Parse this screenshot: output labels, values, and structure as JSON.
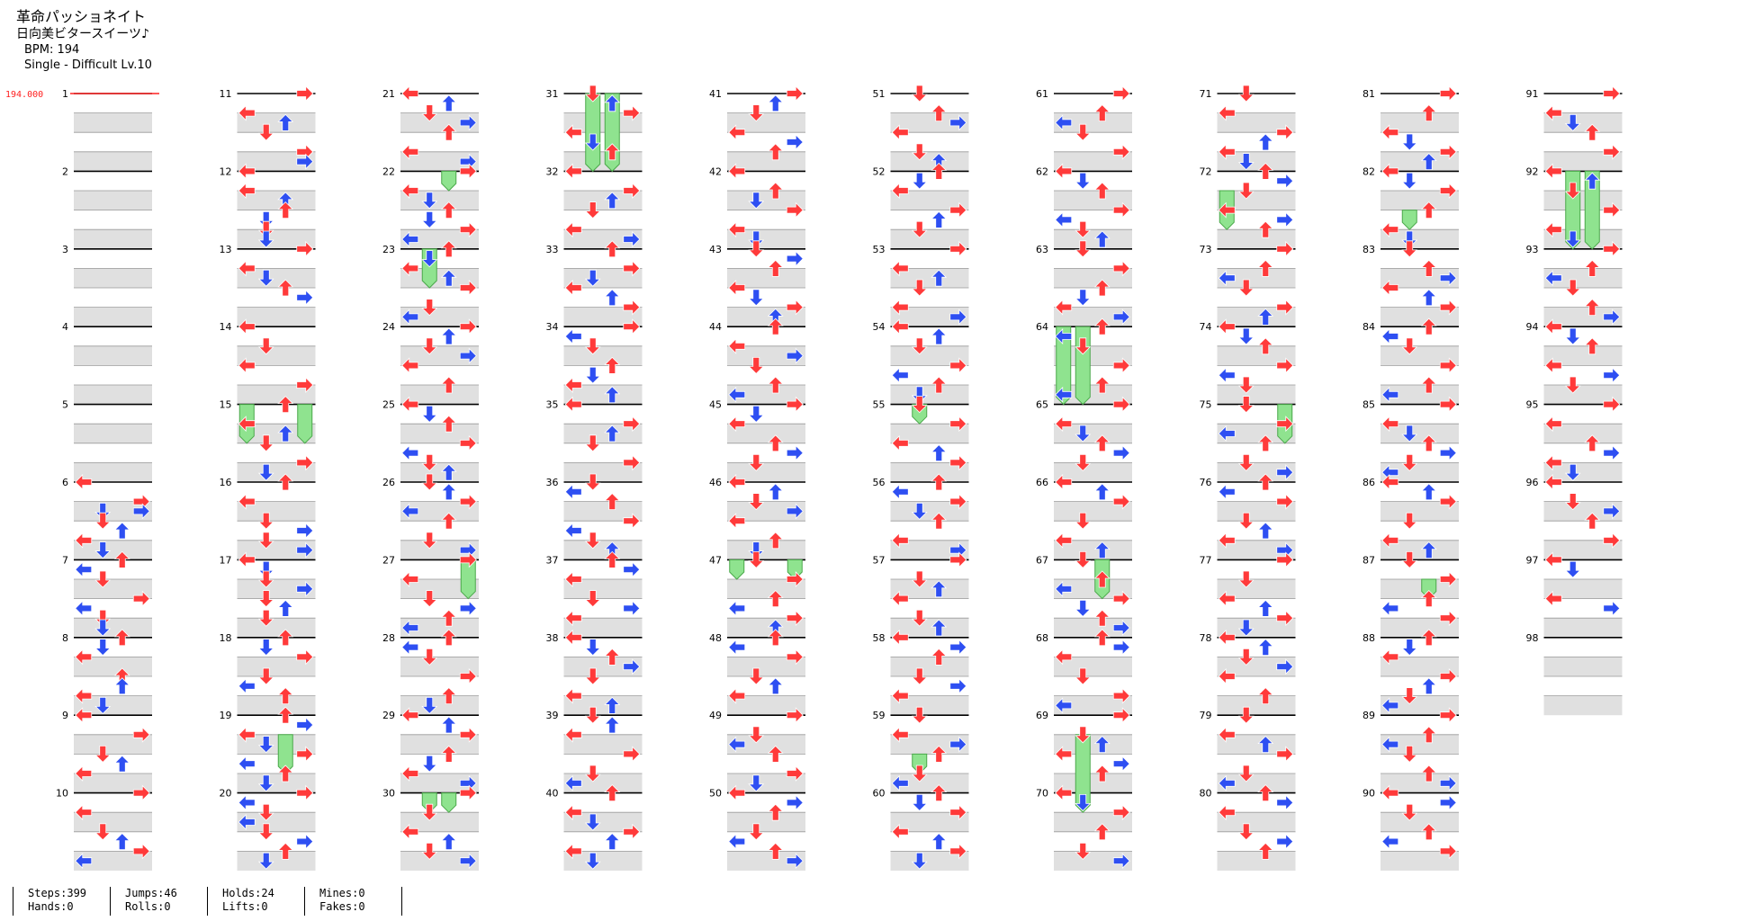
{
  "header": {
    "song_title": "革命パッショネイト",
    "artist": "日向美ビタースイーツ♪",
    "bpm_line": "BPM: 194",
    "difficulty_line": "Single - Difficult Lv.10"
  },
  "bpm_marker": "194.000",
  "stats": {
    "steps": "Steps:399",
    "hands": "Hands:0",
    "jumps": "Jumps:46",
    "rolls": "Rolls:0",
    "holds": "Holds:24",
    "lifts": "Lifts:0",
    "mines": "Mines:0",
    "fakes": "Fakes:0"
  },
  "measures_per_column": 10,
  "total_measures": 98,
  "colors": {
    "quarter_arrow": "#ff3a3a",
    "eighth_arrow": "#2e4ff2",
    "hold_body": "#8fe38f",
    "hold_border": "#4aa84a",
    "beat_band": "#e0e0e0",
    "bpm_marker": "#ff2020"
  },
  "measures": {
    "1": [],
    "2": [],
    "3": [],
    "4": [],
    "5": [],
    "6": [
      "0,L",
      "1,R",
      "1.5,R",
      "1.5,D",
      "2,D",
      "2.5,U",
      "3,L",
      "3.5,D"
    ],
    "7": [
      "0,U",
      "0.5,L",
      "1,D",
      "2,R",
      "2.5,L",
      "3,D",
      "3.5,D"
    ],
    "8": [
      "0,U",
      "0.5,D",
      "1,L",
      "2,U",
      "2.5,U",
      "3,L",
      "3.5,D"
    ],
    "9": [
      "0,L",
      "1,R",
      "2,D",
      "2.5,U",
      "3,L"
    ],
    "10": [
      "0,R",
      "1,L",
      "2,D",
      "2.5,U",
      "3,R",
      "3.5,L"
    ],
    "11": [
      "0,R",
      "1,L",
      "1.5,U",
      "2,D",
      "3,R",
      "3.5,R"
    ],
    "12": [
      "0,L",
      "1,L",
      "1.5,U",
      "2,U",
      "2.5,D",
      "3,D",
      "3.5,D"
    ],
    "13": [
      "0,R",
      "1,L",
      "1.5,D",
      "2,U",
      "2.5,R"
    ],
    "14": [
      "0,L",
      "1,D",
      "2,L",
      "3,R"
    ],
    "15": [
      "0,U",
      "1,L",
      "1.5,U",
      "2,D",
      "3,R",
      "3.5,D"
    ],
    "16": [
      "0,U",
      "1,L",
      "2,D",
      "2.5,R",
      "3,D",
      "3.5,R"
    ],
    "17": [
      "0,L",
      "0.5,D",
      "1,D",
      "1.5,R",
      "2,D",
      "2.5,U",
      "3,D"
    ],
    "18": [
      "0,U",
      "0.5,D",
      "1,R",
      "2,D",
      "2.5,L",
      "3,U"
    ],
    "19": [
      "0,U",
      "0.5,R",
      "1,L",
      "1.5,D",
      "2,R",
      "2.5,L",
      "3,U",
      "3.5,D"
    ],
    "20": [
      "0,R",
      "0.5,L",
      "1,D",
      "1.5,L",
      "2,D",
      "2.5,R",
      "3,U",
      "3.5,D"
    ],
    "21": [
      "0,L",
      "0.5,U",
      "1,D",
      "1.5,R",
      "2,U",
      "3,L",
      "3.5,R"
    ],
    "22": [
      "0,R",
      "1,L",
      "1.5,D",
      "2,U",
      "2.5,D",
      "3,R",
      "3.5,L"
    ],
    "23": [
      "0,U",
      "0.5,D",
      "1,L",
      "1.5,U",
      "2,R",
      "3,D",
      "3.5,L"
    ],
    "24": [
      "0,R",
      "0.5,U",
      "1,D",
      "1.5,R",
      "2,L",
      "3,U"
    ],
    "25": [
      "0,L",
      "0.5,D",
      "1,U",
      "2,R",
      "2.5,L",
      "3,D",
      "3.5,U"
    ],
    "26": [
      "0,D",
      "0.5,U",
      "1,R",
      "1.5,L",
      "2,U",
      "3,D",
      "3.5,R"
    ],
    "27": [
      "0,R",
      "1,L",
      "2,D",
      "2.5,R",
      "3,U",
      "3.5,L"
    ],
    "28": [
      "0,U",
      "0.5,L",
      "1,D",
      "2,R",
      "3,U",
      "3.5,D"
    ],
    "29": [
      "0,L",
      "0.5,U",
      "1,R",
      "2,U",
      "2.5,D",
      "3,L",
      "3.5,R"
    ],
    "30": [
      "0,R",
      "1,D",
      "2,L",
      "2.5,U",
      "3,D",
      "3.5,R"
    ],
    "31": [
      "0,D",
      "0.5,U",
      "1,R",
      "2,L",
      "2.5,D",
      "3,U"
    ],
    "32": [
      "0,L",
      "1,R",
      "1.5,U",
      "2,D",
      "3,L",
      "3.5,R"
    ],
    "33": [
      "0,U",
      "1,R",
      "1.5,D",
      "2,L",
      "2.5,U",
      "3,R"
    ],
    "34": [
      "0,R",
      "0.5,L",
      "1,D",
      "2,U",
      "2.5,D",
      "3,L",
      "3.5,U"
    ],
    "35": [
      "0,L",
      "1,R",
      "1.5,U",
      "2,D",
      "3,R"
    ],
    "36": [
      "0,D",
      "0.5,L",
      "1,U",
      "2,R",
      "2.5,L",
      "3,D",
      "3.5,U"
    ],
    "37": [
      "0,U",
      "0.5,R",
      "1,L",
      "2,D",
      "2.5,R",
      "3,L"
    ],
    "38": [
      "0,L",
      "0.5,D",
      "1,U",
      "1.5,R",
      "2,D",
      "3,L",
      "3.5,U"
    ],
    "39": [
      "0,D",
      "0.5,U",
      "1,L",
      "2,R",
      "3,D",
      "3.5,L"
    ],
    "40": [
      "0,U",
      "1,L",
      "1.5,D",
      "2,R",
      "2.5,U",
      "3,L",
      "3.5,D"
    ],
    "41": [
      "0,R",
      "0.5,U",
      "1,D",
      "2,L",
      "2.5,R",
      "3,U"
    ],
    "42": [
      "0,L",
      "1,U",
      "1.5,D",
      "2,R",
      "3,L",
      "3.5,D"
    ],
    "43": [
      "0,D",
      "0.5,R",
      "1,U",
      "2,L",
      "2.5,D",
      "3,R",
      "3.5,U"
    ],
    "44": [
      "0,U",
      "1,L",
      "1.5,R",
      "2,D",
      "3,U",
      "3.5,L"
    ],
    "45": [
      "0,R",
      "0.5,D",
      "1,L",
      "2,U",
      "2.5,R",
      "3,D"
    ],
    "46": [
      "0,L",
      "0.5,U",
      "1,D",
      "1.5,R",
      "2,L",
      "3,U",
      "3.5,D"
    ],
    "47": [
      "0,D",
      "1,R",
      "2,U",
      "2.5,L",
      "3,R",
      "3.5,U"
    ],
    "48": [
      "0,U",
      "0.5,L",
      "1,R",
      "2,D",
      "2.5,U",
      "3,L"
    ],
    "49": [
      "0,R",
      "1,D",
      "1.5,L",
      "2,U",
      "3,R",
      "3.5,D"
    ],
    "50": [
      "0,L",
      "0.5,R",
      "1,U",
      "2,D",
      "2.5,L",
      "3,U",
      "3.5,R"
    ],
    "51": [
      "0,D",
      "1,U",
      "1.5,R",
      "2,L",
      "3,D",
      "3.5,U"
    ],
    "52": [
      "0,U",
      "0.5,D",
      "1,L",
      "2,R",
      "2.5,U",
      "3,D"
    ],
    "53": [
      "0,R",
      "1,L",
      "1.5,U",
      "2,D",
      "3,L",
      "3.5,R"
    ],
    "54": [
      "0,L",
      "0.5,U",
      "1,D",
      "2,R",
      "2.5,L",
      "3,U",
      "3.5,D"
    ],
    "55": [
      "0,D",
      "1,R",
      "2,L",
      "2.5,U",
      "3,R"
    ],
    "56": [
      "0,U",
      "0.5,L",
      "1,R",
      "1.5,D",
      "2,U",
      "3,L",
      "3.5,R"
    ],
    "57": [
      "0,R",
      "1,D",
      "1.5,U",
      "2,L",
      "3,D",
      "3.5,U"
    ],
    "58": [
      "0,L",
      "0.5,R",
      "1,U",
      "2,D",
      "2.5,R",
      "3,L"
    ],
    "59": [
      "0,D",
      "1,L",
      "1.5,R",
      "2,U",
      "3,D",
      "3.5,L"
    ],
    "60": [
      "0,U",
      "0.5,D",
      "1,R",
      "2,L",
      "2.5,U",
      "3,R",
      "3.5,D"
    ],
    "61": [
      "0,R",
      "1,U",
      "1.5,L",
      "2,D",
      "3,R"
    ],
    "62": [
      "0,L",
      "0.5,D",
      "1,U",
      "2,R",
      "2.5,L",
      "3,D",
      "3.5,U"
    ],
    "63": [
      "0,D",
      "1,R",
      "2,U",
      "2.5,D",
      "3,L",
      "3.5,R"
    ],
    "64": [
      "0,U",
      "0.5,L",
      "1,D",
      "2,R",
      "3,U",
      "3.5,L"
    ],
    "65": [
      "0,R",
      "1,L",
      "1.5,D",
      "2,U",
      "2.5,R",
      "3,D"
    ],
    "66": [
      "0,L",
      "0.5,U",
      "1,R",
      "2,D",
      "3,L",
      "3.5,U"
    ],
    "67": [
      "0,D",
      "1,U",
      "1.5,L",
      "2,R",
      "2.5,D",
      "3,U",
      "3.5,R"
    ],
    "68": [
      "0,U",
      "0.5,R",
      "1,L",
      "2,D",
      "3,R",
      "3.5,L"
    ],
    "69": [
      "0,R",
      "1,D",
      "1.5,U",
      "2,L",
      "2.5,R",
      "3,U"
    ],
    "70": [
      "0,L",
      "0.5,D",
      "1,R",
      "2,U",
      "3,D",
      "3.5,R"
    ],
    "71": [
      "0,D",
      "1,L",
      "2,R",
      "2.5,U",
      "3,L",
      "3.5,D"
    ],
    "72": [
      "0,U",
      "0.5,R",
      "1,D",
      "2,L",
      "2.5,R",
      "3,U"
    ],
    "73": [
      "0,R",
      "1,U",
      "1.5,L",
      "2,D",
      "3,R",
      "3.5,U"
    ],
    "74": [
      "0,L",
      "0.5,D",
      "1,U",
      "2,R",
      "2.5,L",
      "3,D"
    ],
    "75": [
      "0,D",
      "1,R",
      "1.5,L",
      "2,U",
      "3,D",
      "3.5,R"
    ],
    "76": [
      "0,U",
      "0.5,L",
      "1,R",
      "2,D",
      "2.5,U",
      "3,L",
      "3.5,R"
    ],
    "77": [
      "0,R",
      "1,D",
      "2,L",
      "2.5,U",
      "3,R",
      "3.5,D"
    ],
    "78": [
      "0,L",
      "0.5,U",
      "1,D",
      "1.5,R",
      "2,L",
      "3,U"
    ],
    "79": [
      "0,D",
      "1,L",
      "1.5,U",
      "2,R",
      "3,D",
      "3.5,L"
    ],
    "80": [
      "0,U",
      "0.5,R",
      "1,L",
      "2,D",
      "2.5,R",
      "3,U"
    ],
    "81": [
      "0,R",
      "1,U",
      "2,L",
      "2.5,D",
      "3,R",
      "3.5,U"
    ],
    "82": [
      "0,L",
      "0.5,D",
      "1,R",
      "2,U",
      "3,L",
      "3.5,D"
    ],
    "83": [
      "0,D",
      "1,U",
      "1.5,R",
      "2,L",
      "2.5,U",
      "3,R"
    ],
    "84": [
      "0,U",
      "0.5,L",
      "1,D",
      "2,R",
      "3,U",
      "3.5,L"
    ],
    "85": [
      "0,R",
      "1,L",
      "1.5,D",
      "2,U",
      "2.5,R",
      "3,D",
      "3.5,L"
    ],
    "86": [
      "0,L",
      "0.5,U",
      "1,R",
      "2,D",
      "3,L",
      "3.5,U"
    ],
    "87": [
      "0,D",
      "1,R",
      "2,U",
      "2.5,L",
      "3,R"
    ],
    "88": [
      "0,U",
      "0.5,D",
      "1,L",
      "2,R",
      "2.5,U",
      "3,D",
      "3.5,L"
    ],
    "89": [
      "0,R",
      "1,U",
      "1.5,L",
      "2,D",
      "3,U",
      "3.5,R"
    ],
    "90": [
      "0,L",
      "0.5,R",
      "1,D",
      "2,U",
      "2.5,L",
      "3,R"
    ],
    "91": [
      "0,R",
      "1,L",
      "1.5,D",
      "2,U",
      "3,R"
    ],
    "92": [
      "0,L",
      "0.5,U",
      "1,D",
      "2,R",
      "3,L",
      "3.5,D"
    ],
    "93": [
      "0,R",
      "1,U",
      "1.5,L",
      "2,D",
      "3,U",
      "3.5,R"
    ],
    "94": [
      "0,L",
      "0.5,D",
      "1,U",
      "2,L",
      "2.5,R",
      "3,D"
    ],
    "95": [
      "0,R",
      "1,L",
      "2,U",
      "2.5,R",
      "3,L",
      "3.5,D"
    ],
    "96": [
      "0,L",
      "1,D",
      "1.5,R",
      "2,U",
      "3,R"
    ],
    "97": [
      "0,L",
      "0.5,D",
      "2,L",
      "2.5,R"
    ],
    "98": []
  },
  "holds": [
    {
      "m": 15,
      "b": 0,
      "len": 2,
      "lane": 0
    },
    {
      "m": 15,
      "b": 0,
      "len": 2,
      "lane": 3
    },
    {
      "m": 19,
      "b": 1,
      "len": 2,
      "lane": 2
    },
    {
      "m": 22,
      "b": 0,
      "len": 1,
      "lane": 2
    },
    {
      "m": 23,
      "b": 0,
      "len": 2,
      "lane": 1
    },
    {
      "m": 27,
      "b": 0,
      "len": 2,
      "lane": 3
    },
    {
      "m": 30,
      "b": 0,
      "len": 1,
      "lane": 1
    },
    {
      "m": 30,
      "b": 0,
      "len": 1,
      "lane": 2
    },
    {
      "m": 31,
      "b": 0,
      "len": 4,
      "lane": 1
    },
    {
      "m": 31,
      "b": 0,
      "len": 4,
      "lane": 2
    },
    {
      "m": 47,
      "b": 0,
      "len": 1,
      "lane": 0
    },
    {
      "m": 47,
      "b": 0,
      "len": 1,
      "lane": 3
    },
    {
      "m": 55,
      "b": 0,
      "len": 1,
      "lane": 1
    },
    {
      "m": 59,
      "b": 2,
      "len": 1,
      "lane": 1
    },
    {
      "m": 64,
      "b": 0,
      "len": 4,
      "lane": 0
    },
    {
      "m": 64,
      "b": 0,
      "len": 4,
      "lane": 1
    },
    {
      "m": 67,
      "b": 0,
      "len": 2,
      "lane": 2
    },
    {
      "m": 69,
      "b": 1,
      "len": 4,
      "lane": 1
    },
    {
      "m": 72,
      "b": 1,
      "len": 2,
      "lane": 0
    },
    {
      "m": 75,
      "b": 0,
      "len": 2,
      "lane": 3
    },
    {
      "m": 82,
      "b": 2,
      "len": 1,
      "lane": 1
    },
    {
      "m": 87,
      "b": 1,
      "len": 1,
      "lane": 2
    },
    {
      "m": 92,
      "b": 0,
      "len": 4,
      "lane": 1
    },
    {
      "m": 92,
      "b": 0,
      "len": 4,
      "lane": 2
    }
  ]
}
